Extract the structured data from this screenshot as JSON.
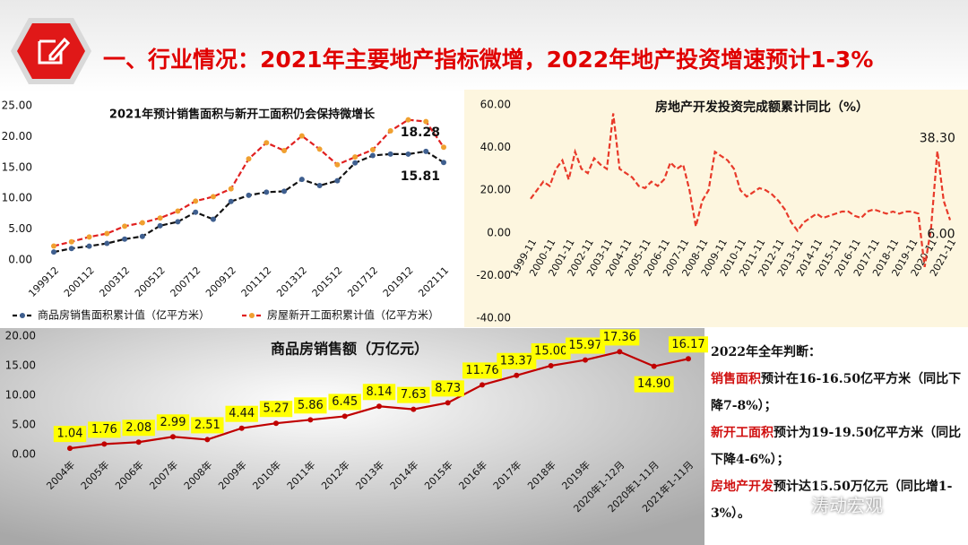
{
  "header": {
    "title": "一、行业情况：2021年主要地产指标微增，2022年地产投资增速预计1-3%"
  },
  "chart_data": [
    {
      "type": "line",
      "title": "2021年预计销售面积与新开工面积仍会保持微增长",
      "categories": [
        "199912",
        null,
        "200112",
        null,
        "200312",
        null,
        "200512",
        null,
        "200712",
        null,
        "200912",
        null,
        "201112",
        null,
        "201312",
        null,
        "201512",
        null,
        "201712",
        null,
        "201912",
        null,
        "202111"
      ],
      "series": [
        {
          "name": "商品房销售面积累计值（亿平方米）",
          "color": "#111111",
          "marker_color": "#3f5f8f",
          "values": [
            1.29,
            1.86,
            2.24,
            2.68,
            3.38,
            3.82,
            5.55,
            6.19,
            7.74,
            6.59,
            9.48,
            10.48,
            10.99,
            11.13,
            13.06,
            12.06,
            12.85,
            15.73,
            16.94,
            17.17,
            17.16,
            17.61,
            15.81
          ]
        },
        {
          "name": "房屋新开工面积累计值（亿平方米）",
          "color": "#e02020",
          "marker_color": "#f0a030",
          "values": [
            2.26,
            2.95,
            3.73,
            4.28,
            5.47,
            6.04,
            6.8,
            7.92,
            9.54,
            10.26,
            11.54,
            16.38,
            19.01,
            17.73,
            20.12,
            17.96,
            15.45,
            16.69,
            17.87,
            20.93,
            22.72,
            22.44,
            18.28
          ]
        }
      ],
      "line_style": "dashed",
      "markers": true,
      "legend": "bottom",
      "ylim": [
        0,
        25
      ],
      "yticks": [
        {
          "value": 0,
          "label": "0.00"
        },
        {
          "value": 5,
          "label": "5.00"
        },
        {
          "value": 10,
          "label": "10.00"
        },
        {
          "value": 15,
          "label": "15.00"
        },
        {
          "value": 20,
          "label": "20.00"
        },
        {
          "value": 25,
          "label": "25.00"
        }
      ]
    },
    {
      "type": "line",
      "title": "房地产开发投资完成额累计同比（%）",
      "categories": [
        "1999-11",
        null,
        null,
        "2000-11",
        null,
        null,
        "2001-11",
        null,
        null,
        "2002-11",
        null,
        null,
        "2003-11",
        null,
        null,
        "2004-11",
        null,
        null,
        "2005-11",
        null,
        null,
        "2006-11",
        null,
        null,
        "2007-11",
        null,
        null,
        "2008-11",
        null,
        null,
        "2009-11",
        null,
        null,
        "2010-11",
        null,
        null,
        "2011-11",
        null,
        null,
        "2012-11",
        null,
        null,
        "2013-11",
        null,
        null,
        "2014-11",
        null,
        null,
        "2015-11",
        null,
        null,
        "2016-11",
        null,
        null,
        "2017-11",
        null,
        null,
        "2018-11",
        null,
        null,
        "2019-11",
        null,
        null,
        "2020-11",
        null,
        null,
        "2021-11"
      ],
      "values": [
        16,
        20,
        24,
        22,
        30,
        34,
        25,
        38,
        30,
        28,
        35,
        32,
        30,
        56,
        30,
        28,
        26,
        22,
        21,
        24,
        22,
        25,
        33,
        30,
        32,
        20,
        3,
        15,
        20,
        38,
        36,
        34,
        30,
        20,
        17,
        19,
        21,
        20,
        18,
        15,
        11,
        5,
        1,
        5,
        7,
        9,
        7,
        8,
        9,
        10,
        10,
        8,
        7,
        10,
        11,
        10,
        9,
        10,
        9,
        10,
        10,
        9,
        -16,
        2,
        38.3,
        15,
        6
      ],
      "value_labels": [
        null,
        null,
        null,
        null,
        null,
        null,
        null,
        null,
        null,
        null,
        null,
        null,
        null,
        null,
        null,
        null,
        null,
        null,
        null,
        null,
        null,
        null,
        null,
        null,
        null,
        null,
        null,
        null,
        null,
        null,
        null,
        null,
        null,
        null,
        null,
        null,
        null,
        null,
        null,
        null,
        null,
        null,
        null,
        null,
        null,
        null,
        null,
        null,
        null,
        null,
        null,
        null,
        null,
        null,
        null,
        null,
        null,
        null,
        null,
        null,
        null,
        null,
        null,
        null,
        "38.30",
        null,
        "6.00"
      ],
      "color": "#e83a2a",
      "line_style": "dashed",
      "markers": false,
      "ylim": [
        -40,
        60
      ],
      "yticks": [
        {
          "value": -40,
          "label": "-40.00"
        },
        {
          "value": -20,
          "label": "-20.00"
        },
        {
          "value": 0,
          "label": "0.00"
        },
        {
          "value": 20,
          "label": "20.00"
        },
        {
          "value": 40,
          "label": "40.00"
        },
        {
          "value": 60,
          "label": "60.00"
        }
      ]
    },
    {
      "type": "line",
      "title": "商品房销售额（万亿元）",
      "categories": [
        "2004年",
        "2005年",
        "2006年",
        "2007年",
        "2008年",
        "2009年",
        "2010年",
        "2011年",
        "2012年",
        "2013年",
        "2014年",
        "2015年",
        "2016年",
        "2017年",
        "2018年",
        "2019年",
        "2020年1-12月",
        "2020年1-11月",
        "2021年1-11月"
      ],
      "values": [
        1.04,
        1.76,
        2.08,
        2.99,
        2.51,
        4.44,
        5.27,
        5.86,
        6.45,
        8.14,
        7.63,
        8.73,
        11.76,
        13.37,
        15.0,
        15.97,
        17.36,
        14.9,
        16.17
      ],
      "value_labels": [
        "1.04",
        "1.76",
        "2.08",
        "2.99",
        "2.51",
        "4.44",
        "5.27",
        "5.86",
        "6.45",
        "8.14",
        "7.63",
        "8.73",
        "11.76",
        "13.37",
        "15.00",
        "15.97",
        "17.36",
        "14.90",
        "16.17"
      ],
      "color": "#c00000",
      "line_style": "solid",
      "markers": true,
      "label_box_color": "#ffff00",
      "ylim": [
        0,
        20
      ],
      "yticks": [
        {
          "value": 0,
          "label": "0.00"
        },
        {
          "value": 5,
          "label": "5.00"
        },
        {
          "value": 10,
          "label": "10.00"
        },
        {
          "value": 15,
          "label": "15.00"
        },
        {
          "value": 20,
          "label": "20.00"
        }
      ]
    }
  ],
  "notes": {
    "title": "2022年全年判断：",
    "items": [
      {
        "label": "销售面积",
        "text": "预计在16-16.50亿平方米（同比下降7-8%）；"
      },
      {
        "label": "新开工面积",
        "text": "预计为19-19.50亿平方米（同比下降4-6%）；"
      },
      {
        "label": "房地产开发",
        "text": "预计达15.50万亿元（同比增1-3%）。"
      }
    ]
  },
  "watermark": "涛动宏观"
}
